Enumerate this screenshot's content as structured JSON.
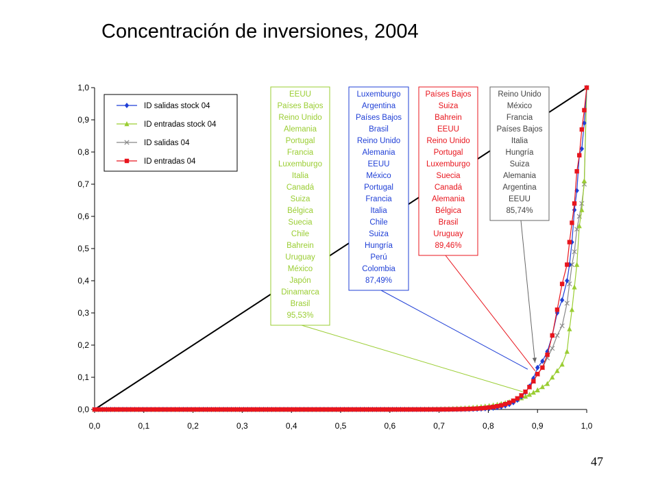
{
  "slide": {
    "title": "Concentración de inversiones, 2004",
    "page_number": "47"
  },
  "chart_data": {
    "type": "line",
    "title": "Concentración de inversiones, 2004",
    "xlabel": "",
    "ylabel": "",
    "xlim": [
      0,
      1
    ],
    "ylim": [
      0,
      1
    ],
    "x_ticks": [
      "0,0",
      "0,1",
      "0,2",
      "0,3",
      "0,4",
      "0,5",
      "0,6",
      "0,7",
      "0,8",
      "0,9",
      "1,0"
    ],
    "y_ticks": [
      "0,0",
      "0,1",
      "0,2",
      "0,3",
      "0,4",
      "0,5",
      "0,6",
      "0,7",
      "0,8",
      "0,9",
      "1,0"
    ],
    "grid": false,
    "legend_position": "top-left",
    "reference_line": {
      "x": [
        0,
        1
      ],
      "y": [
        0,
        1
      ],
      "color": "#000000"
    },
    "series": [
      {
        "name": "ID salidas stock 04",
        "color": "#1f3fd6",
        "marker": "diamond",
        "x": [
          0.9,
          0.91,
          0.92,
          0.93,
          0.94,
          0.95,
          0.96,
          0.965,
          0.97,
          0.975,
          0.98,
          0.985,
          0.99,
          0.995,
          1.0
        ],
        "y": [
          0.13,
          0.15,
          0.18,
          0.23,
          0.3,
          0.34,
          0.4,
          0.45,
          0.52,
          0.62,
          0.68,
          0.79,
          0.81,
          0.89,
          1.0
        ]
      },
      {
        "name": "ID entradas stock 04",
        "color": "#9acd32",
        "marker": "triangle",
        "x": [
          0.9,
          0.91,
          0.92,
          0.93,
          0.94,
          0.95,
          0.96,
          0.965,
          0.97,
          0.975,
          0.98,
          0.985,
          0.99,
          0.995,
          1.0
        ],
        "y": [
          0.06,
          0.07,
          0.08,
          0.1,
          0.12,
          0.14,
          0.18,
          0.25,
          0.31,
          0.38,
          0.45,
          0.57,
          0.62,
          0.71,
          1.0
        ]
      },
      {
        "name": "ID salidas 04",
        "color": "#888888",
        "marker": "x",
        "x": [
          0.9,
          0.91,
          0.92,
          0.93,
          0.94,
          0.95,
          0.96,
          0.965,
          0.97,
          0.975,
          0.98,
          0.985,
          0.99,
          0.995,
          1.0
        ],
        "y": [
          0.11,
          0.13,
          0.16,
          0.19,
          0.23,
          0.26,
          0.33,
          0.39,
          0.45,
          0.49,
          0.56,
          0.6,
          0.64,
          0.7,
          1.0
        ]
      },
      {
        "name": "ID entradas 04",
        "color": "#e8151d",
        "marker": "square",
        "x": [
          0.9,
          0.91,
          0.92,
          0.93,
          0.94,
          0.95,
          0.96,
          0.965,
          0.97,
          0.975,
          0.98,
          0.985,
          0.99,
          0.995,
          1.0
        ],
        "y": [
          0.11,
          0.13,
          0.17,
          0.23,
          0.31,
          0.39,
          0.45,
          0.52,
          0.58,
          0.64,
          0.74,
          0.79,
          0.87,
          0.93,
          1.0
        ]
      }
    ],
    "annotations": [
      {
        "color": "#9acd32",
        "items": [
          "EEUU",
          "Países Bajos",
          "Reino Unido",
          "Alemania",
          "Portugal",
          "Francia",
          "Luxemburgo",
          "Italia",
          "Canadá",
          "Suiza",
          "Bélgica",
          "Suecia",
          "Chile",
          "Bahrein",
          "Uruguay",
          "México",
          "Japón",
          "Dinamarca",
          "Brasil",
          "95,53%"
        ],
        "points_to": [
          0.87,
          0.055
        ]
      },
      {
        "color": "#1f3fd6",
        "items": [
          "Luxemburgo",
          "Argentina",
          "Países Bajos",
          "Brasil",
          "Reino Unido",
          "Alemania",
          "EEUU",
          "México",
          "Portugal",
          "Francia",
          "Italia",
          "Chile",
          "Suiza",
          "Hungría",
          "Perú",
          "Colombia",
          "87,49%"
        ],
        "points_to": [
          0.88,
          0.125
        ]
      },
      {
        "color": "#e8151d",
        "items": [
          "Países Bajos",
          "Suiza",
          "Bahrein",
          "EEUU",
          "Reino Unido",
          "Portugal",
          "Luxemburgo",
          "Suecia",
          "Canadá",
          "Alemania",
          "Bélgica",
          "Brasil",
          "Uruguay",
          "89,46%"
        ],
        "points_to": [
          0.895,
          0.12
        ]
      },
      {
        "color": "#666666",
        "items": [
          "Reino Unido",
          "México",
          "Francia",
          "Países Bajos",
          "Italia",
          "Hungría",
          "Suiza",
          "Alemania",
          "Argentina",
          "EEUU",
          "85,74%"
        ],
        "points_to": [
          0.895,
          0.145
        ]
      }
    ]
  }
}
